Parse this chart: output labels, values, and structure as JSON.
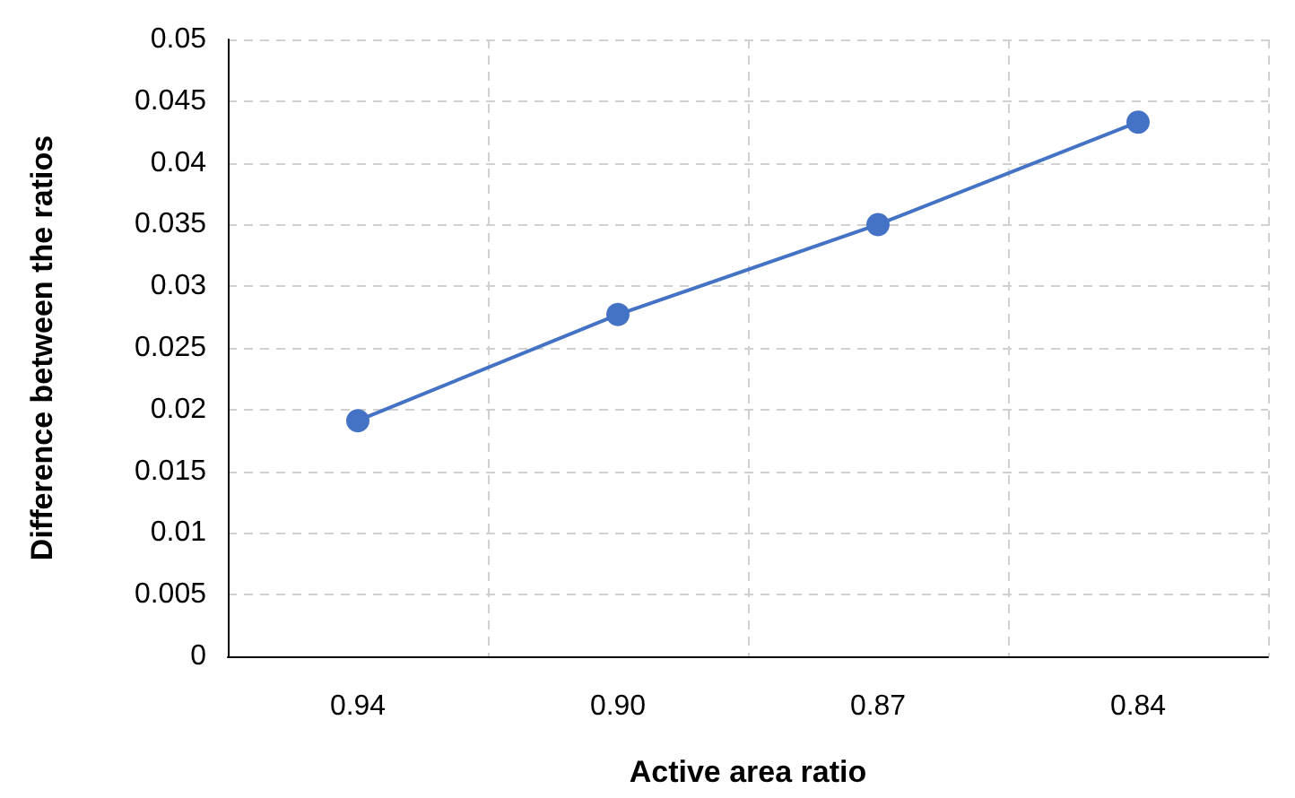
{
  "chart_data": {
    "type": "line",
    "xlabel": "Active area ratio",
    "ylabel": "Difference between the ratios",
    "categories": [
      "0.94",
      "0.90",
      "0.87",
      "0.84"
    ],
    "series": [
      {
        "color": "#4472c4",
        "values": [
          0.0191,
          0.0277,
          0.035,
          0.0433
        ]
      }
    ],
    "ylim": [
      0,
      0.05
    ],
    "yticks": [
      0,
      0.005,
      0.01,
      0.015,
      0.02,
      0.025,
      0.03,
      0.035,
      0.04,
      0.045,
      0.05
    ],
    "grid": true,
    "marker": "circle",
    "line_style": "solid"
  }
}
